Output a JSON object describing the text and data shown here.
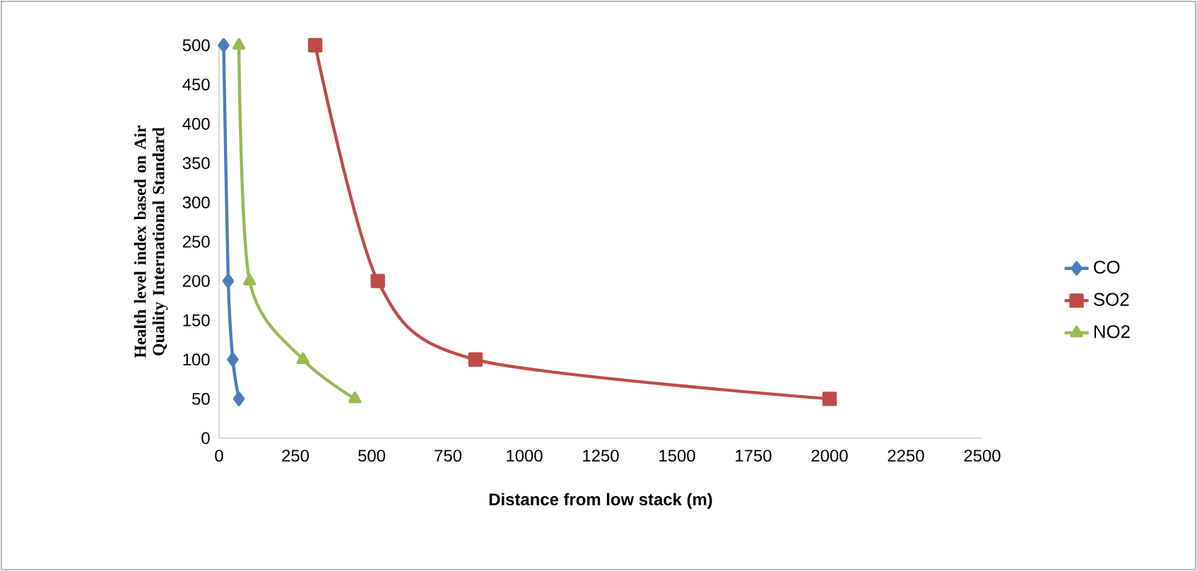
{
  "chart_data": {
    "type": "line",
    "xlabel": "Distance from low stack (m)",
    "ylabel": "Health level index based on Air Quality International Standard",
    "xlim": [
      0,
      2500
    ],
    "xticks": [
      0,
      250,
      500,
      750,
      1000,
      1250,
      1500,
      1750,
      2000,
      2250,
      2500
    ],
    "ylim": [
      0,
      500
    ],
    "yticks": [
      0,
      50,
      100,
      150,
      200,
      250,
      300,
      350,
      400,
      450,
      500
    ],
    "grid": false,
    "legend": "right",
    "series": [
      {
        "name": "CO",
        "color": "#4a7ebb",
        "marker": "diamond",
        "x": [
          15,
          30,
          45,
          65
        ],
        "values": [
          500,
          200,
          100,
          50
        ]
      },
      {
        "name": "SO2",
        "color": "#be4b48",
        "marker": "square",
        "x": [
          315,
          520,
          840,
          2000
        ],
        "values": [
          500,
          200,
          100,
          50
        ]
      },
      {
        "name": "NO2",
        "color": "#98b954",
        "marker": "triangle",
        "x": [
          65,
          100,
          275,
          445
        ],
        "values": [
          500,
          200,
          100,
          50
        ]
      }
    ]
  }
}
